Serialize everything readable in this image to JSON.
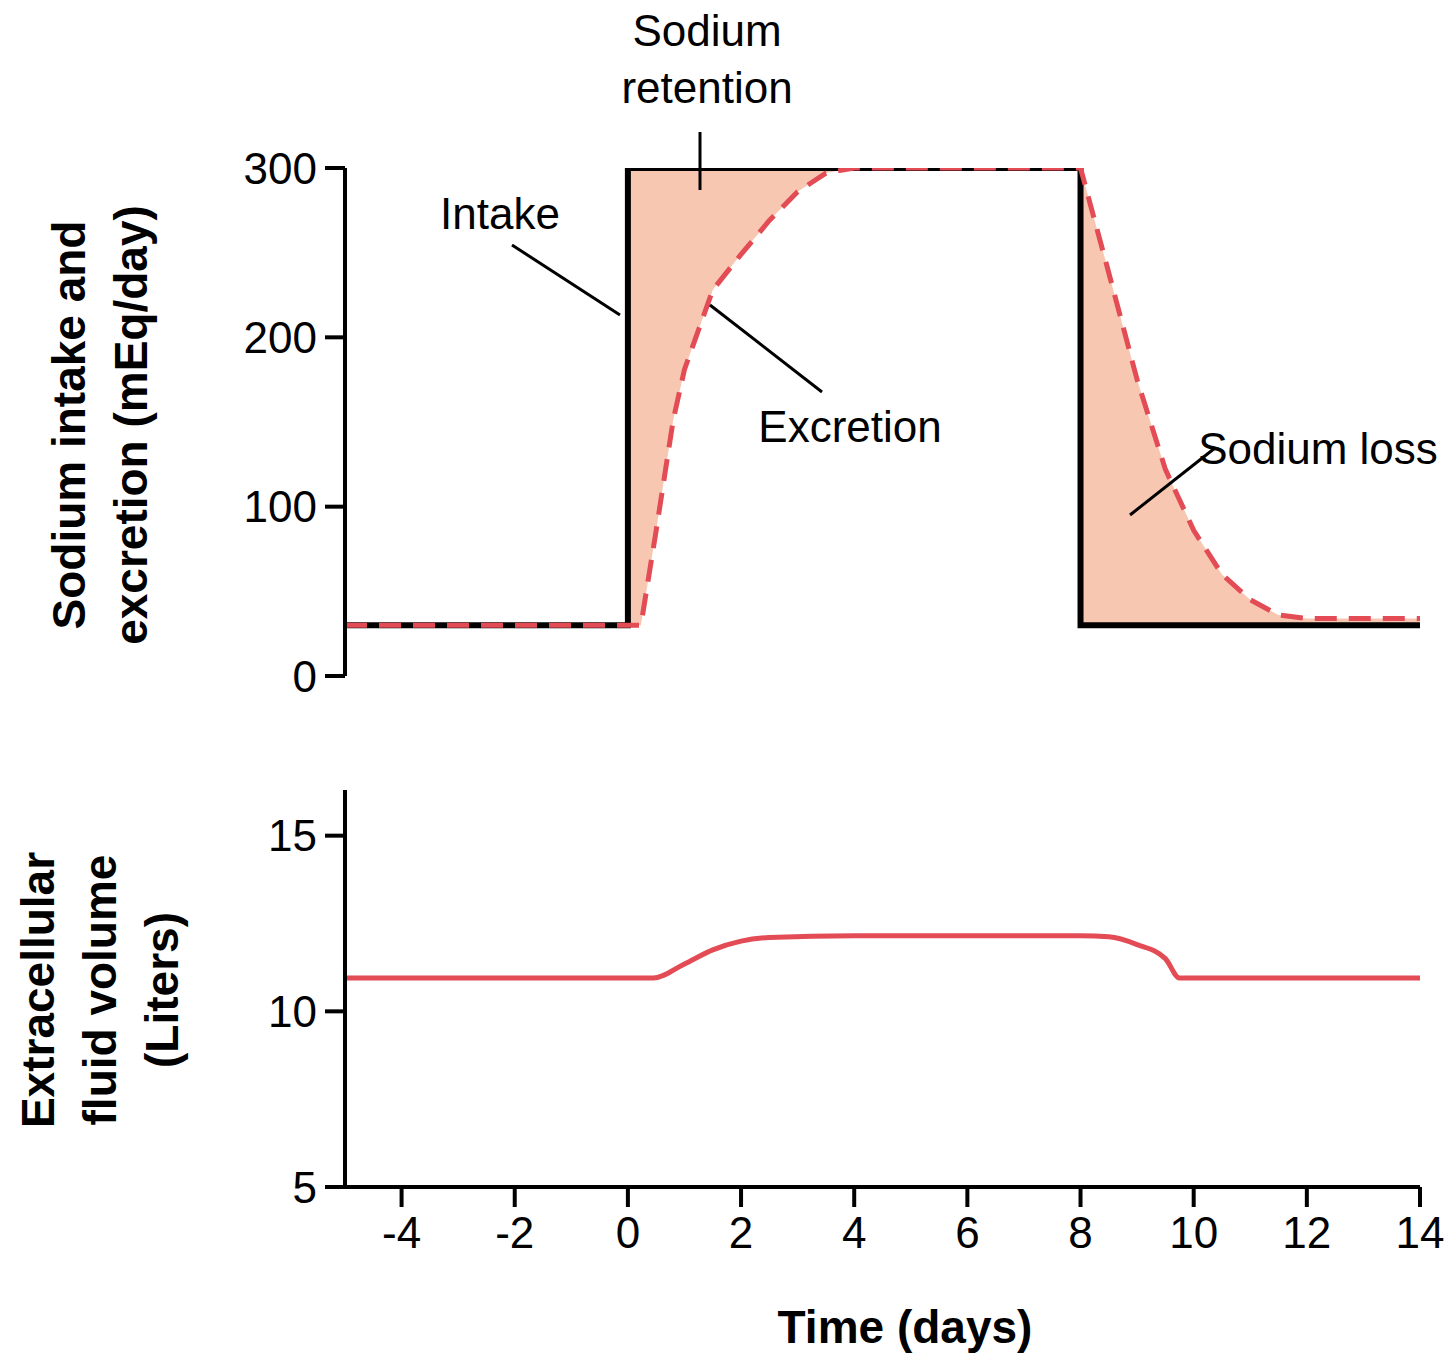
{
  "chart_data": [
    {
      "type": "line",
      "y_label": "Sodium intake and excretion (mEq/day)",
      "xlim": [
        -5,
        14
      ],
      "ylim": [
        0,
        300
      ],
      "yticks": [
        0,
        100,
        200,
        300
      ],
      "tick_labels": "y",
      "annotations": [
        "Sodium retention",
        "Sodium loss"
      ],
      "series": [
        {
          "name": "Intake",
          "color": "#000000",
          "line_style": "solid",
          "x": [
            -5,
            0,
            0,
            8,
            8,
            14
          ],
          "values": [
            30,
            30,
            300,
            300,
            30,
            30
          ]
        },
        {
          "name": "Excretion",
          "color": "#e34b55",
          "line_style": "dashed",
          "x": [
            -5,
            0.23,
            0.5,
            0.8,
            1,
            1.5,
            2,
            2.5,
            3,
            3.5,
            4,
            8,
            8.5,
            9,
            9.5,
            10,
            10.5,
            11,
            11.5,
            12,
            14
          ],
          "values": [
            30,
            30,
            86,
            151,
            181,
            228,
            249,
            269,
            286,
            297,
            300,
            300,
            238,
            175,
            122,
            86,
            60,
            45,
            36,
            34,
            34
          ]
        }
      ]
    },
    {
      "type": "line",
      "x_label": "Time (days)",
      "y_label": "Extracellular fluid volume (Liters)",
      "xlim": [
        -5,
        14
      ],
      "xticks": [
        -4,
        -2,
        0,
        2,
        4,
        6,
        8,
        10,
        12,
        14
      ],
      "ylim": [
        5,
        16.3
      ],
      "yticks": [
        5,
        10,
        15
      ],
      "color": "#e34b55",
      "line_style": "solid",
      "x": [
        -5,
        0.45,
        1,
        1.5,
        2,
        2.5,
        4,
        8,
        8.5,
        9,
        9.5,
        9.75,
        14
      ],
      "values": [
        10.95,
        10.95,
        11.35,
        11.75,
        12.0,
        12.1,
        12.15,
        12.15,
        12.12,
        11.9,
        11.5,
        10.95,
        10.95
      ]
    }
  ]
}
